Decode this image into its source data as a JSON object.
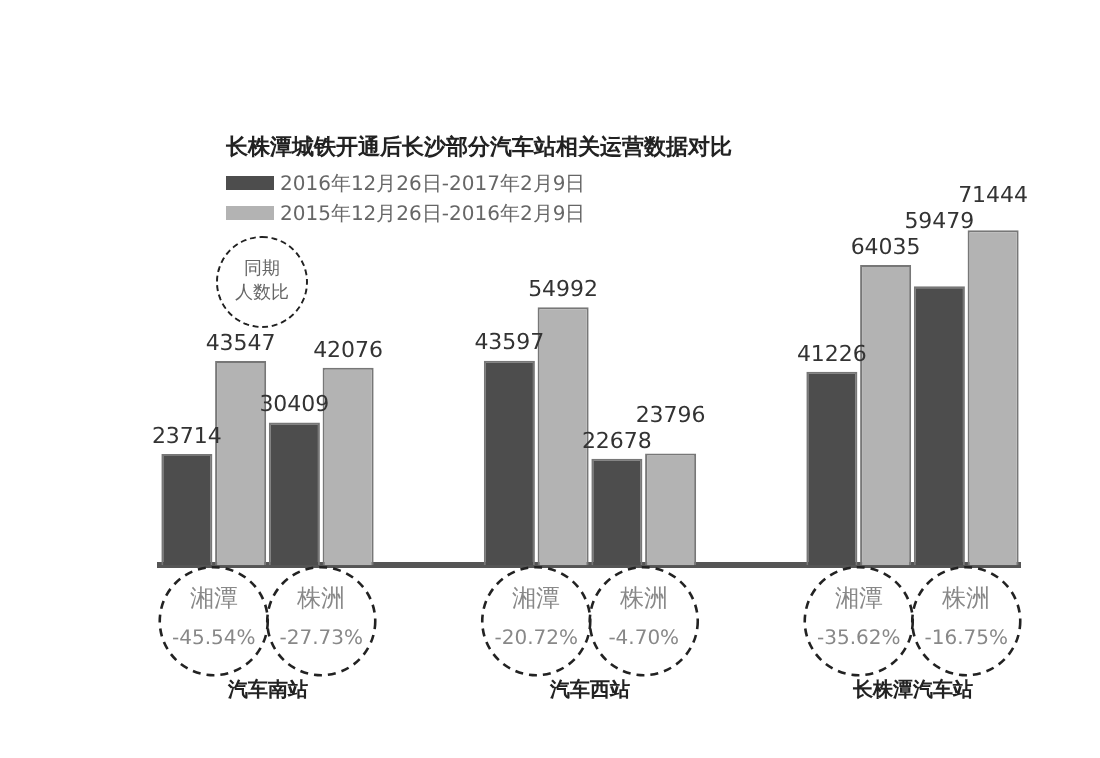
{
  "chart_data": {
    "type": "bar",
    "title": "长株潭城铁开通后长沙部分汽车站相关运营数据对比",
    "categories": [
      "湘潭",
      "株洲",
      null,
      "湘潭",
      "株洲",
      null,
      "湘潭",
      "株洲"
    ],
    "series": [
      {
        "name": "2016年12月26日-2017年2月9日",
        "color": "#4d4d4d",
        "values": [
          23714,
          30409,
          null,
          43597,
          22678,
          null,
          41226,
          59479
        ]
      },
      {
        "name": "2015年12月26日-2016年2月9日",
        "color": "#b3b3b3",
        "values": [
          43547,
          42076,
          null,
          54992,
          23796,
          null,
          64035,
          71444
        ]
      }
    ],
    "data_labels": true,
    "legend": "top left",
    "annotations": [
      "-45.54%",
      "-27.73%",
      "-20.72%",
      "-4.70%",
      "-35.62%",
      "-16.75%",
      "汽车南站",
      "汽车西站",
      "长株潭汽车站",
      "同期",
      "人数比"
    ]
  }
}
